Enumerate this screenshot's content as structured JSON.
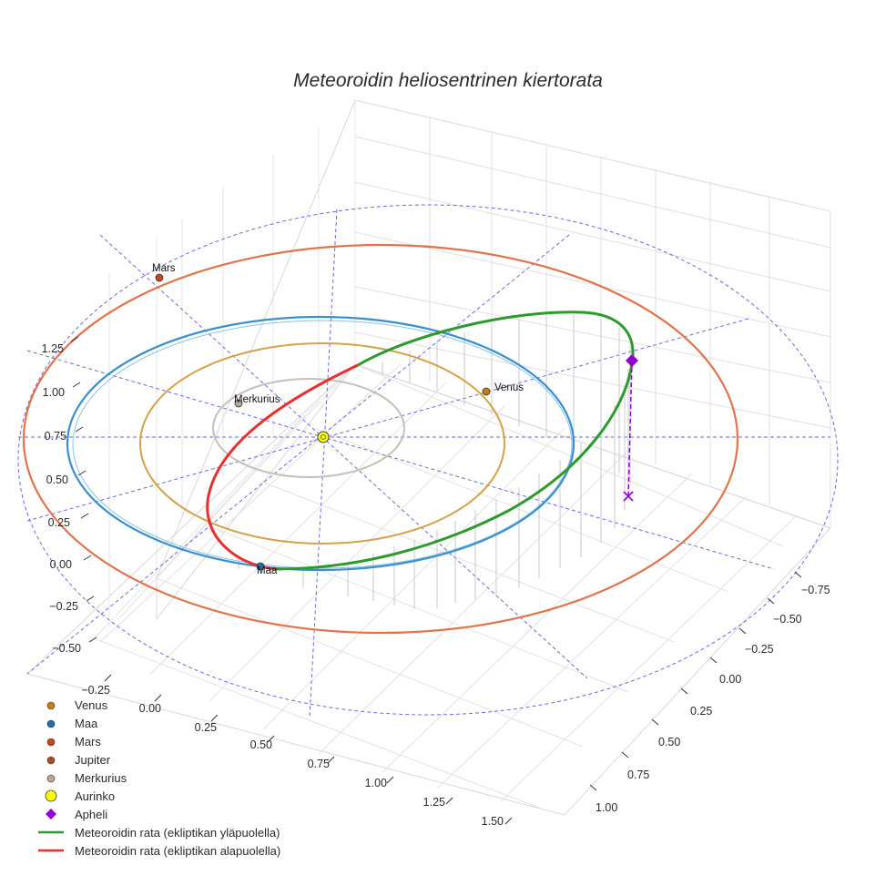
{
  "chart_data": {
    "type": "scatter",
    "title": "Meteoroidin heliosentrinen kiertorata",
    "axes": {
      "x": {
        "ticks": [
          "−0.25",
          "0.00",
          "0.25",
          "0.50",
          "0.75",
          "1.00",
          "1.25",
          "1.50"
        ]
      },
      "y": {
        "ticks": [
          "−0.75",
          "−0.50",
          "−0.25",
          "0.00",
          "0.25",
          "0.50",
          "0.75",
          "1.00"
        ]
      },
      "z": {
        "ticks": [
          "−0.50",
          "−0.25",
          "0.00",
          "0.25",
          "0.50",
          "0.75",
          "1.00",
          "1.25"
        ]
      }
    },
    "planets": [
      {
        "name": "Venus",
        "label": "Venus",
        "orbit_radius_au": 0.72,
        "color": "#d4a24c",
        "marker_color": "#cc7a1e"
      },
      {
        "name": "Maa",
        "label": "Maa",
        "orbit_radius_au": 1.0,
        "color": "#3a8fcc",
        "marker_color": "#1f6fb0"
      },
      {
        "name": "Mars",
        "label": "Mars",
        "orbit_radius_au": 1.52,
        "color": "#e0744a",
        "marker_color": "#c8461e"
      },
      {
        "name": "Jupiter",
        "label": "",
        "orbit_radius_au": null,
        "color": "#a0522d",
        "marker_color": "#a0522d"
      },
      {
        "name": "Merkurius",
        "label": "Merkurius",
        "orbit_radius_au": 0.39,
        "color": "#c9bfb8",
        "marker_color": "#b8a898"
      }
    ],
    "sun": {
      "name": "Aurinko",
      "color": "#ffff00"
    },
    "aphelion": {
      "name": "Apheli",
      "color": "#9400d3"
    },
    "meteoroid_orbit": {
      "above_name": "Meteoroidin rata (ekliptikan yläpuolella)",
      "below_name": "Meteoroidin rata (ekliptikan alapuolella)",
      "above_color": "#2e9a2e",
      "below_color": "#e63030"
    },
    "legend": [
      {
        "label": "Venus",
        "symbol": "dot",
        "color": "#cc7a1e"
      },
      {
        "label": "Maa",
        "symbol": "dot",
        "color": "#1f6fb0"
      },
      {
        "label": "Mars",
        "symbol": "dot",
        "color": "#c8461e"
      },
      {
        "label": "Jupiter",
        "symbol": "dot",
        "color": "#a0522d"
      },
      {
        "label": "Merkurius",
        "symbol": "dot",
        "color": "#b8a898"
      },
      {
        "label": "Aurinko",
        "symbol": "sun",
        "color": "#ffff00"
      },
      {
        "label": "Apheli",
        "symbol": "diamond",
        "color": "#9400d3"
      },
      {
        "label": "Meteoroidin rata (ekliptikan yläpuolella)",
        "symbol": "line",
        "color": "#2e9a2e"
      },
      {
        "label": "Meteoroidin rata (ekliptikan alapuolella)",
        "symbol": "line",
        "color": "#e63030"
      }
    ]
  }
}
